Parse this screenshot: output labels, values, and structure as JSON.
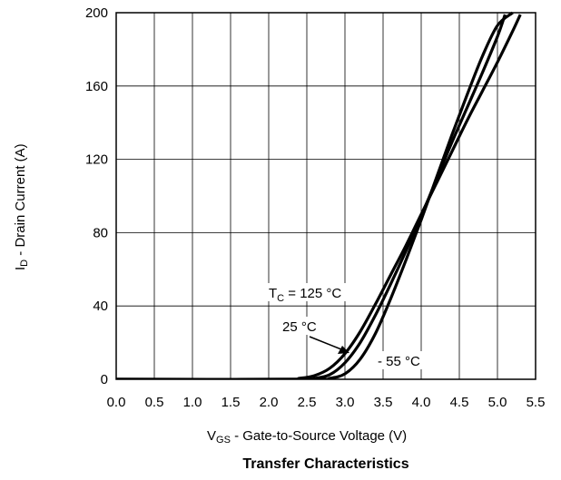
{
  "chart_data": {
    "type": "line",
    "title": "Transfer Characteristics",
    "xlabel": {
      "symbol": "V",
      "subscript": "GS",
      "text": " - Gate-to-Source Voltage (V)"
    },
    "ylabel": {
      "symbol": "I",
      "subscript": "D",
      "text": " - Drain Current (A)"
    },
    "xlim": [
      0,
      5.5
    ],
    "ylim": [
      0,
      200
    ],
    "xticks": [
      "0.0",
      "0.5",
      "1.0",
      "1.5",
      "2.0",
      "2.5",
      "3.0",
      "3.5",
      "4.0",
      "4.5",
      "5.0",
      "5.5"
    ],
    "yticks": [
      "0",
      "40",
      "80",
      "120",
      "160",
      "200"
    ],
    "grid": true,
    "series": [
      {
        "name": "125 °C",
        "x": [
          0,
          2.2,
          2.4,
          2.6,
          2.8,
          3.0,
          3.2,
          3.4,
          3.6,
          3.8,
          4.0,
          4.2,
          4.4,
          4.6,
          4.8,
          5.0,
          5.2,
          5.3
        ],
        "y": [
          0,
          0,
          0.5,
          2,
          6,
          14,
          26,
          41,
          57,
          73,
          90,
          107,
          124,
          141,
          157,
          173,
          190,
          199
        ]
      },
      {
        "name": "25 °C",
        "x": [
          0,
          2.4,
          2.6,
          2.8,
          3.0,
          3.2,
          3.4,
          3.6,
          3.8,
          4.0,
          4.2,
          4.4,
          4.6,
          4.8,
          5.0,
          5.1
        ],
        "y": [
          0,
          0,
          0.5,
          2.5,
          9,
          20,
          35,
          52,
          70,
          89,
          109,
          129,
          148,
          167,
          187,
          199
        ]
      },
      {
        "name": "- 55 °C",
        "x": [
          0,
          2.6,
          2.8,
          3.0,
          3.2,
          3.4,
          3.6,
          3.8,
          4.0,
          4.2,
          4.4,
          4.6,
          4.8,
          5.0,
          5.2
        ],
        "y": [
          0,
          0,
          0.5,
          3,
          11,
          25,
          44,
          65,
          87,
          110,
          133,
          155,
          176,
          193,
          200
        ]
      }
    ],
    "annotations": [
      {
        "series": "125 °C",
        "prefix": "T",
        "subscript": "C",
        "text": " = 125 °C"
      },
      {
        "series": "25 °C",
        "text": "25 °C"
      },
      {
        "series": "- 55 °C",
        "text": "- 55 °C"
      }
    ]
  }
}
